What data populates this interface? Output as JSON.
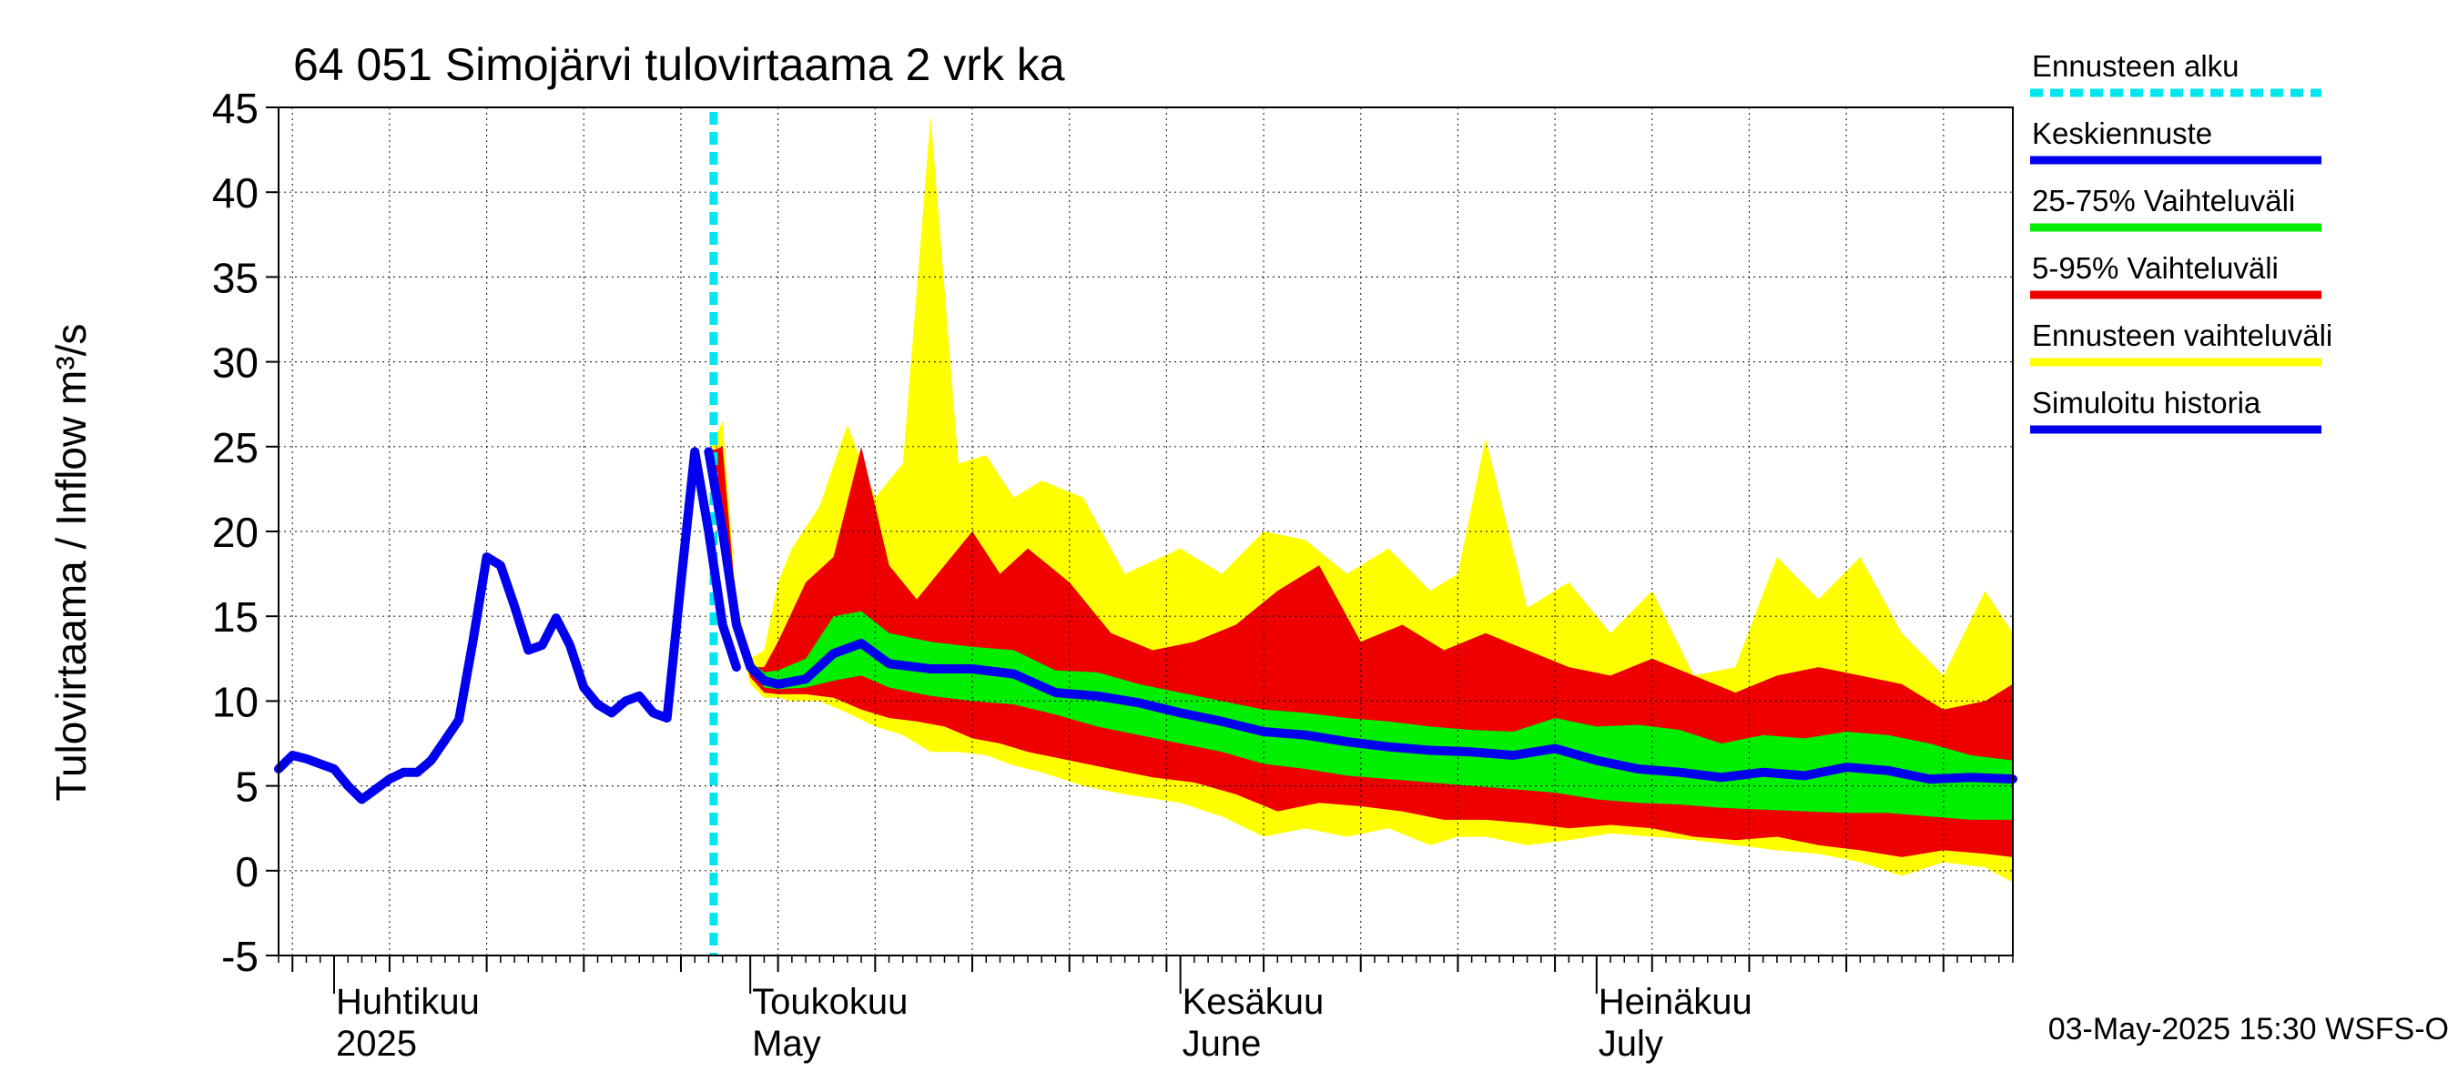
{
  "chart_data": {
    "type": "area",
    "title": "64 051 Simojärvi tulovirtaama 2 vrk ka",
    "ylabel": "Tulovirtaama / Inflow     m³/s",
    "ylim": [
      -5,
      45
    ],
    "yticks": [
      -5,
      0,
      5,
      10,
      15,
      20,
      25,
      30,
      35,
      40,
      45
    ],
    "xlim": [
      "2025-03-28",
      "2025-07-31"
    ],
    "grid": true,
    "x_tick_labels": [
      {
        "date": "2025-04-01",
        "line1": "Huhtikuu",
        "line2": "2025"
      },
      {
        "date": "2025-05-01",
        "line1": "Toukokuu",
        "line2": "May"
      },
      {
        "date": "2025-06-01",
        "line1": "Kesäkuu",
        "line2": "June"
      },
      {
        "date": "2025-07-01",
        "line1": "Heinäkuu",
        "line2": "July"
      }
    ],
    "forecast_start": "2025-04-30",
    "legend": [
      {
        "label": "Ennusteen alku",
        "color": "#00e5ee",
        "style": "dotted"
      },
      {
        "label": "Keskiennuste",
        "color": "#0000ee",
        "style": "solid"
      },
      {
        "label": "25-75% Vaihteluväli",
        "color": "#00ee00",
        "style": "solid"
      },
      {
        "label": "5-95% Vaihteluväli",
        "color": "#ee0000",
        "style": "solid"
      },
      {
        "label": "Ennusteen vaihteluväli",
        "color": "#ffff00",
        "style": "solid"
      },
      {
        "label": "Simuloitu historia",
        "color": "#0000ee",
        "style": "solid"
      }
    ],
    "legend_position": "right",
    "colors": {
      "history": "#0000ee",
      "median": "#0000ee",
      "band_25_75": "#00ee00",
      "band_5_95": "#ee0000",
      "band_minmax": "#ffff00",
      "forecast_start": "#00e5ee"
    },
    "series": [
      {
        "name": "Simuloitu historia",
        "x": [
          "2025-03-28",
          "2025-03-29",
          "2025-03-30",
          "2025-03-31",
          "2025-04-01",
          "2025-04-02",
          "2025-04-03",
          "2025-04-04",
          "2025-04-05",
          "2025-04-06",
          "2025-04-07",
          "2025-04-08",
          "2025-04-09",
          "2025-04-10",
          "2025-04-11",
          "2025-04-12",
          "2025-04-13",
          "2025-04-14",
          "2025-04-15",
          "2025-04-16",
          "2025-04-17",
          "2025-04-18",
          "2025-04-19",
          "2025-04-20",
          "2025-04-21",
          "2025-04-22",
          "2025-04-23",
          "2025-04-24",
          "2025-04-25",
          "2025-04-26",
          "2025-04-27",
          "2025-04-28",
          "2025-04-29",
          "2025-04-30"
        ],
        "values": [
          6.0,
          6.8,
          6.6,
          6.3,
          6.0,
          5.0,
          4.2,
          4.8,
          5.4,
          5.8,
          5.8,
          6.5,
          7.7,
          8.9,
          13.5,
          18.5,
          18.0,
          15.6,
          13.0,
          13.3,
          14.9,
          13.3,
          10.8,
          9.8,
          9.3,
          10.0,
          10.3,
          9.3,
          9.0,
          17.0,
          24.7,
          20.0,
          14.5,
          12.0
        ]
      },
      {
        "name": "Keskiennuste",
        "x": [
          "2025-04-28",
          "2025-04-29",
          "2025-04-30",
          "2025-05-01",
          "2025-05-02",
          "2025-05-03",
          "2025-05-05",
          "2025-05-07",
          "2025-05-09",
          "2025-05-11",
          "2025-05-14",
          "2025-05-17",
          "2025-05-20",
          "2025-05-23",
          "2025-05-26",
          "2025-05-29",
          "2025-06-01",
          "2025-06-04",
          "2025-06-07",
          "2025-06-10",
          "2025-06-13",
          "2025-06-16",
          "2025-06-19",
          "2025-06-22",
          "2025-06-25",
          "2025-06-28",
          "2025-07-01",
          "2025-07-04",
          "2025-07-07",
          "2025-07-10",
          "2025-07-13",
          "2025-07-16",
          "2025-07-19",
          "2025-07-22",
          "2025-07-25",
          "2025-07-28",
          "2025-07-31"
        ],
        "values": [
          24.7,
          20.0,
          14.5,
          12.0,
          11.2,
          11.0,
          11.3,
          12.8,
          13.4,
          12.2,
          11.9,
          11.9,
          11.6,
          10.5,
          10.3,
          9.9,
          9.3,
          8.8,
          8.2,
          8.0,
          7.6,
          7.3,
          7.1,
          7.0,
          6.8,
          7.2,
          6.5,
          6.0,
          5.8,
          5.5,
          5.8,
          5.6,
          6.1,
          5.9,
          5.4,
          5.5,
          5.4
        ]
      }
    ],
    "bands": [
      {
        "name": "Ennusteen vaihteluväli",
        "x": [
          "2025-04-28",
          "2025-04-29",
          "2025-04-30",
          "2025-05-01",
          "2025-05-02",
          "2025-05-03",
          "2025-05-04",
          "2025-05-06",
          "2025-05-08",
          "2025-05-10",
          "2025-05-12",
          "2025-05-14",
          "2025-05-16",
          "2025-05-18",
          "2025-05-20",
          "2025-05-22",
          "2025-05-25",
          "2025-05-28",
          "2025-06-01",
          "2025-06-04",
          "2025-06-07",
          "2025-06-10",
          "2025-06-13",
          "2025-06-16",
          "2025-06-19",
          "2025-06-21",
          "2025-06-23",
          "2025-06-26",
          "2025-06-29",
          "2025-07-02",
          "2025-07-05",
          "2025-07-08",
          "2025-07-11",
          "2025-07-14",
          "2025-07-17",
          "2025-07-20",
          "2025-07-23",
          "2025-07-26",
          "2025-07-29",
          "2025-07-31"
        ],
        "lower": [
          24.7,
          20.0,
          14.0,
          11.0,
          10.2,
          10.2,
          10.0,
          10.0,
          9.3,
          8.5,
          8.0,
          7.0,
          7.0,
          6.8,
          6.2,
          5.8,
          5.0,
          4.5,
          4.0,
          3.2,
          2.0,
          2.5,
          2.0,
          2.5,
          1.5,
          2.0,
          2.0,
          1.5,
          1.8,
          2.2,
          2.0,
          1.8,
          1.5,
          1.2,
          1.0,
          0.5,
          -0.3,
          0.5,
          0.2,
          -0.7
        ],
        "upper": [
          24.7,
          26.5,
          16.0,
          12.5,
          13.0,
          17.0,
          19.0,
          21.5,
          26.3,
          22.0,
          24.0,
          44.5,
          24.0,
          24.5,
          22.0,
          23.0,
          22.0,
          17.5,
          19.0,
          17.5,
          20.0,
          19.5,
          17.5,
          19.0,
          16.5,
          17.5,
          25.5,
          15.5,
          17.0,
          14.0,
          16.5,
          11.5,
          12.0,
          18.5,
          16.0,
          18.5,
          14.0,
          11.5,
          16.5,
          14.0
        ]
      },
      {
        "name": "5-95% Vaihteluväli",
        "x": [
          "2025-04-28",
          "2025-04-29",
          "2025-04-30",
          "2025-05-01",
          "2025-05-02",
          "2025-05-03",
          "2025-05-05",
          "2025-05-07",
          "2025-05-09",
          "2025-05-11",
          "2025-05-13",
          "2025-05-15",
          "2025-05-17",
          "2025-05-19",
          "2025-05-21",
          "2025-05-24",
          "2025-05-27",
          "2025-05-30",
          "2025-06-02",
          "2025-06-05",
          "2025-06-08",
          "2025-06-11",
          "2025-06-14",
          "2025-06-17",
          "2025-06-20",
          "2025-06-23",
          "2025-06-26",
          "2025-06-29",
          "2025-07-02",
          "2025-07-05",
          "2025-07-08",
          "2025-07-11",
          "2025-07-14",
          "2025-07-17",
          "2025-07-20",
          "2025-07-23",
          "2025-07-26",
          "2025-07-29",
          "2025-07-31"
        ],
        "lower": [
          24.7,
          20.0,
          14.2,
          11.4,
          10.5,
          10.4,
          10.4,
          10.2,
          9.5,
          9.0,
          8.8,
          8.5,
          7.8,
          7.5,
          7.0,
          6.5,
          6.0,
          5.5,
          5.2,
          4.5,
          3.5,
          4.0,
          3.8,
          3.5,
          3.0,
          3.0,
          2.8,
          2.5,
          2.7,
          2.5,
          2.0,
          1.8,
          2.0,
          1.5,
          1.2,
          0.8,
          1.2,
          1.0,
          0.8
        ],
        "upper": [
          24.7,
          25.0,
          15.5,
          12.0,
          12.0,
          13.5,
          17.0,
          18.5,
          25.0,
          18.0,
          16.0,
          18.0,
          20.0,
          17.5,
          19.0,
          17.0,
          14.0,
          13.0,
          13.5,
          14.5,
          16.5,
          18.0,
          13.5,
          14.5,
          13.0,
          14.0,
          13.0,
          12.0,
          11.5,
          12.5,
          11.5,
          10.5,
          11.5,
          12.0,
          11.5,
          11.0,
          9.5,
          10.0,
          11.0
        ]
      },
      {
        "name": "25-75% Vaihteluväli",
        "x": [
          "2025-04-28",
          "2025-04-29",
          "2025-04-30",
          "2025-05-01",
          "2025-05-02",
          "2025-05-03",
          "2025-05-05",
          "2025-05-07",
          "2025-05-09",
          "2025-05-11",
          "2025-05-14",
          "2025-05-17",
          "2025-05-20",
          "2025-05-23",
          "2025-05-26",
          "2025-05-29",
          "2025-06-01",
          "2025-06-04",
          "2025-06-07",
          "2025-06-10",
          "2025-06-13",
          "2025-06-16",
          "2025-06-19",
          "2025-06-22",
          "2025-06-25",
          "2025-06-28",
          "2025-07-01",
          "2025-07-04",
          "2025-07-07",
          "2025-07-10",
          "2025-07-13",
          "2025-07-16",
          "2025-07-19",
          "2025-07-22",
          "2025-07-25",
          "2025-07-28",
          "2025-07-31"
        ],
        "lower": [
          24.7,
          20.0,
          14.4,
          11.7,
          10.8,
          10.7,
          10.8,
          11.2,
          11.5,
          10.8,
          10.3,
          10.0,
          9.8,
          9.2,
          8.5,
          8.0,
          7.5,
          7.0,
          6.3,
          6.0,
          5.6,
          5.4,
          5.2,
          5.0,
          4.8,
          4.6,
          4.2,
          4.0,
          3.9,
          3.7,
          3.6,
          3.5,
          3.4,
          3.4,
          3.2,
          3.0,
          3.0
        ],
        "upper": [
          24.7,
          20.0,
          14.7,
          12.3,
          11.7,
          11.8,
          12.5,
          15.0,
          15.3,
          14.0,
          13.5,
          13.2,
          13.0,
          11.8,
          11.7,
          11.0,
          10.5,
          10.0,
          9.5,
          9.3,
          9.0,
          8.8,
          8.5,
          8.3,
          8.2,
          9.0,
          8.5,
          8.6,
          8.3,
          7.5,
          8.0,
          7.8,
          8.2,
          8.0,
          7.5,
          6.8,
          6.5
        ]
      }
    ],
    "footer": "03-May-2025 15:30 WSFS-O"
  }
}
